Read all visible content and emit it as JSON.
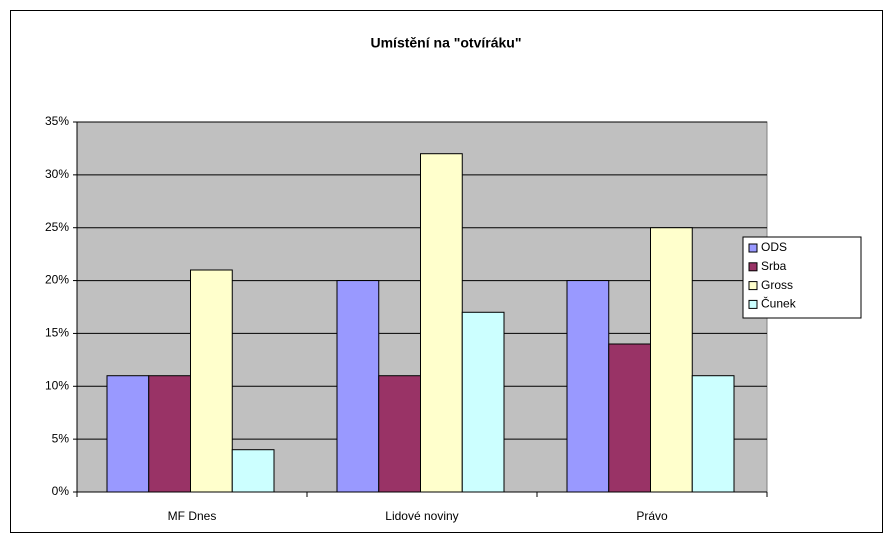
{
  "chart_data": {
    "type": "bar",
    "title": "Umístění na \"otvíráku\"",
    "categories": [
      "MF Dnes",
      "Lidové noviny",
      "Právo"
    ],
    "series": [
      {
        "name": "ODS",
        "color": "#9999ff",
        "values": [
          11,
          20,
          20
        ]
      },
      {
        "name": "Srba",
        "color": "#993366",
        "values": [
          11,
          11,
          14
        ]
      },
      {
        "name": "Gross",
        "color": "#ffffcc",
        "values": [
          21,
          32,
          25
        ]
      },
      {
        "name": "Čunek",
        "color": "#ccffff",
        "values": [
          4,
          17,
          11
        ]
      }
    ],
    "ylim": [
      0,
      35
    ],
    "yticks": [
      {
        "value": 0,
        "label": "0%"
      },
      {
        "value": 5,
        "label": "5%"
      },
      {
        "value": 10,
        "label": "10%"
      },
      {
        "value": 15,
        "label": "15%"
      },
      {
        "value": 20,
        "label": "20%"
      },
      {
        "value": 25,
        "label": "25%"
      },
      {
        "value": 30,
        "label": "30%"
      },
      {
        "value": 35,
        "label": "35%"
      }
    ],
    "grid": true,
    "legend": "right",
    "plot_background": "#c0c0c0"
  }
}
